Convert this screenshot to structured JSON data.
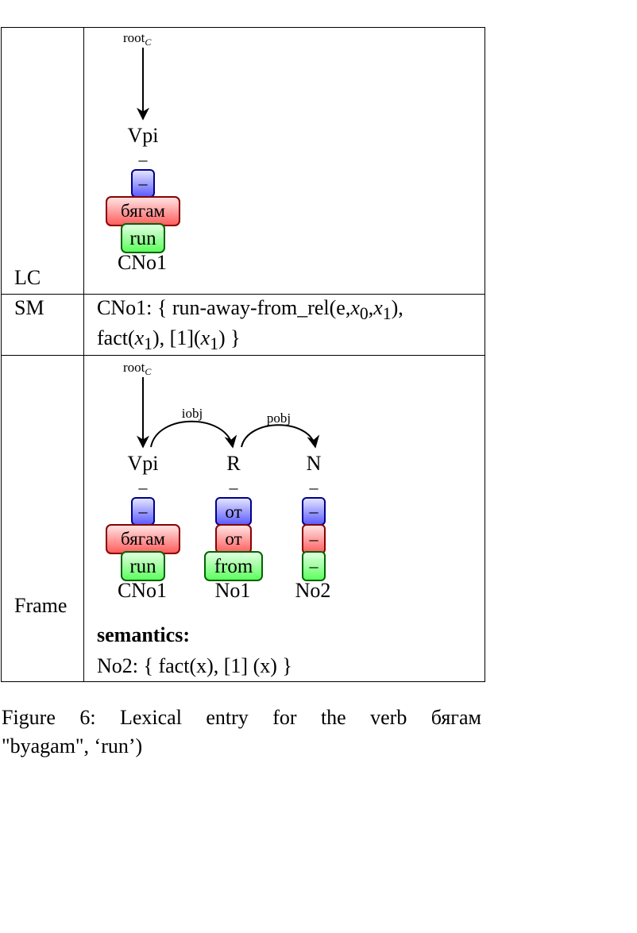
{
  "rows": {
    "lc_label": "LC",
    "sm_label": "SM",
    "frame_label": "Frame"
  },
  "lc": {
    "root": "root",
    "root_sub": "C",
    "node": {
      "label": "Vpi",
      "dash": "–",
      "blue": "–",
      "red": "бягам",
      "green": "run",
      "bottom": "CNo1"
    }
  },
  "sm": {
    "line1_prefix": "CNo1:  {  run-away-from_rel(e,",
    "line1_x0": "x",
    "line1_x0_sub": "0",
    "line1_comma": ",",
    "line1_x1": "x",
    "line1_x1_sub": "1",
    "line1_end": "),",
    "line2_a": "fact(",
    "line2_x": "x",
    "line2_sub": "1",
    "line2_b": "), [1](",
    "line2_x2": "x",
    "line2_sub2": "1",
    "line2_c": ") }"
  },
  "frame": {
    "root": "root",
    "root_sub": "C",
    "edges": [
      {
        "label": "iobj"
      },
      {
        "label": "pobj"
      }
    ],
    "nodes": [
      {
        "label": "Vpi",
        "dash": "–",
        "blue": "–",
        "red": "бягам",
        "green": "run",
        "bottom": "CNo1"
      },
      {
        "label": "R",
        "dash": "–",
        "blue": "от",
        "red": "от",
        "green": "from",
        "bottom": "No1"
      },
      {
        "label": "N",
        "dash": "–",
        "blue": "–",
        "red": "–",
        "green": "–",
        "bottom": "No2"
      }
    ],
    "semantics_heading": "semantics:",
    "semantics_text": "No2: { fact(x), [1] (x) }"
  },
  "caption": {
    "words": [
      "Figure",
      "6:",
      "Lexical",
      "entry",
      "for",
      "the",
      "verb",
      "бягам"
    ],
    "line2": "\"byagam\", ‘run’)"
  },
  "colors": {
    "blue_top": "#e6e6ff",
    "blue_bottom": "#5a5aff",
    "blue_border": "#00008b",
    "red_top": "#ffe6e6",
    "red_bottom": "#ff5a5a",
    "red_border": "#8b0000",
    "green_top": "#e6ffe6",
    "green_bottom": "#5aff5a",
    "green_border": "#006400"
  }
}
